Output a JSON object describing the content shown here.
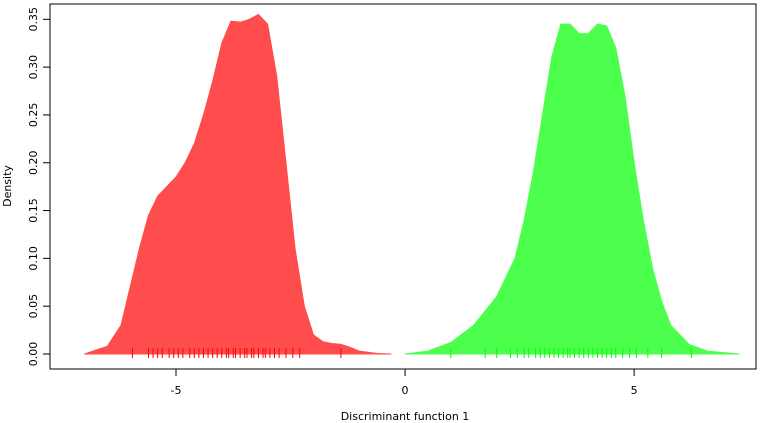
{
  "chart_data": {
    "type": "density",
    "xlabel": "Discriminant function 1",
    "ylabel": "Density",
    "xlim": [
      -7.75,
      7.66
    ],
    "ylim": [
      -0.0157,
      0.366
    ],
    "xticks": [
      -5,
      0,
      5
    ],
    "yticks": [
      {
        "value": 0,
        "label": "0.00"
      },
      0.05,
      {
        "value": 0.1,
        "label": "0.10"
      },
      0.15,
      {
        "value": 0.2,
        "label": "0.20"
      },
      0.25,
      {
        "value": 0.3,
        "label": "0.30"
      },
      0.35
    ],
    "series": [
      {
        "color": "#ff4c4c",
        "rug_color": "#ff0000",
        "x": [
          -7.0,
          -6.5,
          -6.2,
          -6.0,
          -5.8,
          -5.6,
          -5.4,
          -5.2,
          -5.0,
          -4.8,
          -4.6,
          -4.4,
          -4.2,
          -4.0,
          -3.8,
          -3.6,
          -3.4,
          -3.2,
          -3.0,
          -2.8,
          -2.6,
          -2.4,
          -2.2,
          -2.0,
          -1.8,
          -1.6,
          -1.4,
          -1.2,
          -1.0,
          -0.6,
          -0.3
        ],
        "values": [
          0.0,
          0.008,
          0.03,
          0.07,
          0.11,
          0.145,
          0.165,
          0.175,
          0.185,
          0.2,
          0.22,
          0.25,
          0.285,
          0.325,
          0.348,
          0.347,
          0.35,
          0.355,
          0.345,
          0.29,
          0.2,
          0.11,
          0.05,
          0.02,
          0.013,
          0.011,
          0.01,
          0.007,
          0.003,
          0.0005,
          0.0
        ],
        "rug": [
          -5.95,
          -5.6,
          -5.5,
          -5.4,
          -5.3,
          -5.15,
          -5.05,
          -4.95,
          -4.85,
          -4.7,
          -4.6,
          -4.5,
          -4.4,
          -4.3,
          -4.2,
          -4.1,
          -4.0,
          -3.9,
          -3.85,
          -3.75,
          -3.7,
          -3.6,
          -3.5,
          -3.45,
          -3.35,
          -3.3,
          -3.2,
          -3.1,
          -3.05,
          -2.95,
          -2.85,
          -2.75,
          -2.6,
          -2.45,
          -2.3,
          -1.4
        ]
      },
      {
        "color": "#4cff4c",
        "rug_color": "#00ff00",
        "x": [
          0.0,
          0.5,
          1.0,
          1.5,
          2.0,
          2.4,
          2.6,
          2.8,
          3.0,
          3.2,
          3.4,
          3.6,
          3.8,
          4.0,
          4.2,
          4.4,
          4.6,
          4.8,
          5.0,
          5.2,
          5.4,
          5.6,
          5.8,
          6.2,
          6.6,
          7.3
        ],
        "values": [
          0.0,
          0.003,
          0.012,
          0.03,
          0.06,
          0.1,
          0.14,
          0.19,
          0.25,
          0.31,
          0.345,
          0.345,
          0.335,
          0.335,
          0.345,
          0.343,
          0.32,
          0.27,
          0.2,
          0.14,
          0.09,
          0.055,
          0.03,
          0.01,
          0.003,
          0.0
        ],
        "rug": [
          1.0,
          1.75,
          2.0,
          2.3,
          2.45,
          2.6,
          2.7,
          2.85,
          2.95,
          3.05,
          3.15,
          3.25,
          3.35,
          3.45,
          3.55,
          3.6,
          3.7,
          3.8,
          3.9,
          4.0,
          4.1,
          4.2,
          4.3,
          4.4,
          4.5,
          4.6,
          4.75,
          4.9,
          5.05,
          5.3,
          5.6,
          6.25
        ]
      }
    ]
  }
}
